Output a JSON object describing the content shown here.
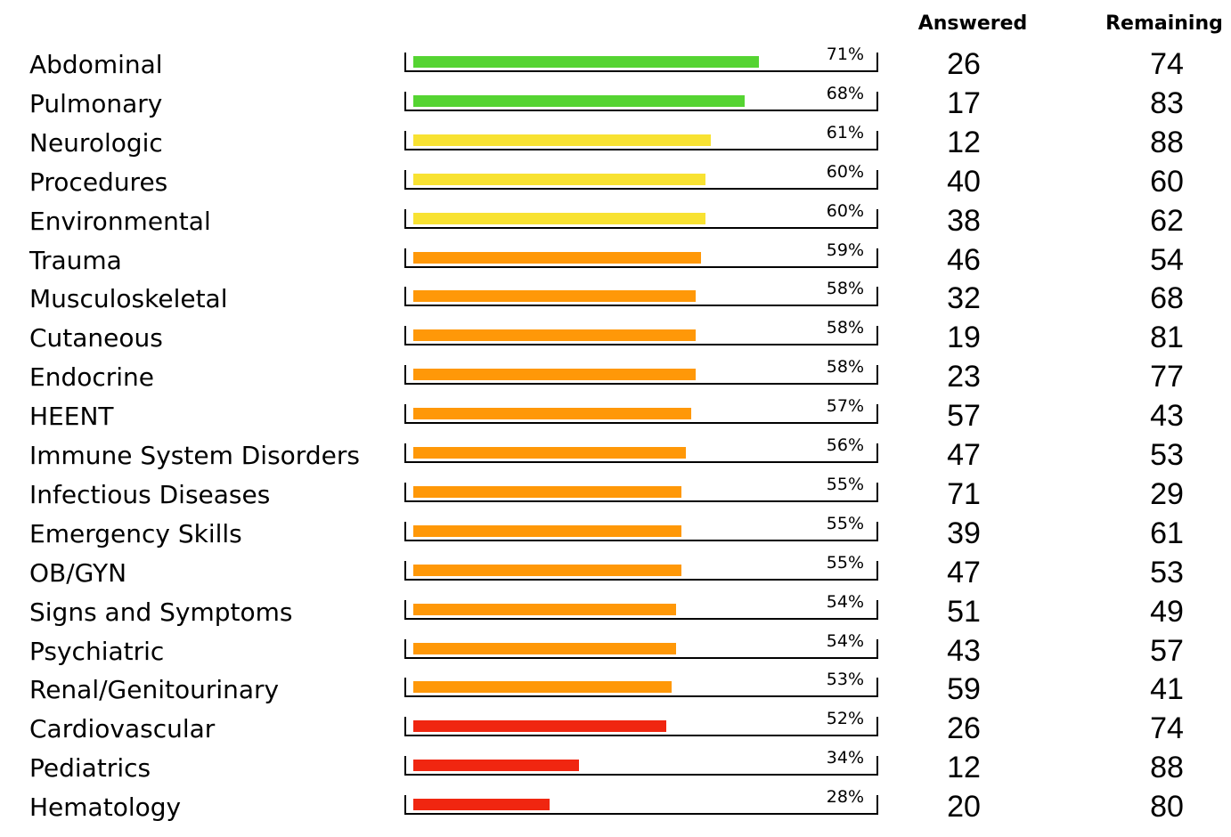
{
  "headers": {
    "answered": "Answered",
    "remaining": "Remaining"
  },
  "colors": {
    "green": "#55d432",
    "yellow": "#f8e232",
    "orange": "#ff9808",
    "red": "#f02610"
  },
  "chart_data": {
    "type": "bar",
    "orientation": "horizontal",
    "categories": [
      "Abdominal",
      "Pulmonary",
      "Neurologic",
      "Procedures",
      "Environmental",
      "Trauma",
      "Musculoskeletal",
      "Cutaneous",
      "Endocrine",
      "HEENT",
      "Immune System Disorders",
      "Infectious Diseases",
      "Emergency Skills",
      "OB/GYN",
      "Signs and Symptoms",
      "Psychiatric",
      "Renal/Genitourinary",
      "Cardiovascular",
      "Pediatrics",
      "Hematology"
    ],
    "values": [
      71,
      68,
      61,
      60,
      60,
      59,
      58,
      58,
      58,
      57,
      56,
      55,
      55,
      55,
      54,
      54,
      53,
      52,
      34,
      28
    ],
    "value_labels": [
      "71%",
      "68%",
      "61%",
      "60%",
      "60%",
      "59%",
      "58%",
      "58%",
      "58%",
      "57%",
      "56%",
      "55%",
      "55%",
      "55%",
      "54%",
      "54%",
      "53%",
      "52%",
      "34%",
      "28%"
    ],
    "bar_colors": [
      "green",
      "green",
      "yellow",
      "yellow",
      "yellow",
      "orange",
      "orange",
      "orange",
      "orange",
      "orange",
      "orange",
      "orange",
      "orange",
      "orange",
      "orange",
      "orange",
      "orange",
      "red",
      "red",
      "red"
    ],
    "answered": [
      "26",
      "17",
      "12",
      "40",
      "38",
      "46",
      "32",
      "19",
      "23",
      "57",
      "47",
      "71",
      "39",
      "47",
      "51",
      "43",
      "59",
      "26",
      "12",
      "20"
    ],
    "remaining": [
      "74",
      "83",
      "88",
      "60",
      "62",
      "54",
      "68",
      "81",
      "77",
      "43",
      "53",
      "29",
      "61",
      "53",
      "49",
      "57",
      "41",
      "74",
      "88",
      "80"
    ],
    "xlim": [
      0,
      100
    ]
  }
}
